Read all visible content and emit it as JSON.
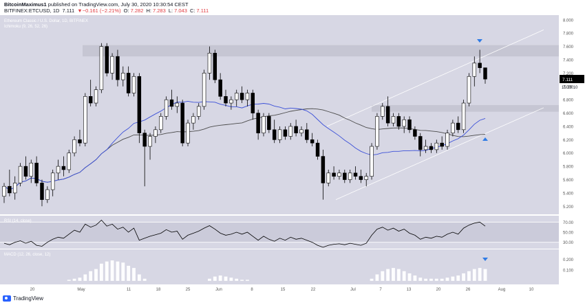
{
  "header": {
    "author": "BitcoinMaximus1",
    "published_text": "published on TradingView.com, July 30, 2020 10:30:54 CEST",
    "symbol": "BITFINEX:ETCUSD, 1D",
    "price": "7.111",
    "change": "▼−0.161 (−2.21%)",
    "open_label": "O:",
    "open_value": "7.282",
    "high_label": "H:",
    "high_value": "7.283",
    "low_label": "L:",
    "low_value": "7.043",
    "close_label": "C:",
    "close_value": "7.111"
  },
  "footer": {
    "brand": "TradingView"
  },
  "colors": {
    "background": "#d7d7e4",
    "candle_up": "#ffffff",
    "candle_down": "#000000",
    "ma_blue": "#3b50d8",
    "ma_dark": "#4a4a4a",
    "channel": "#ffffff",
    "zone": "#c3c3d0",
    "arrow": "#2f7be5",
    "price_tag": "#000000"
  },
  "chart_data": [
    {
      "type": "candlestick",
      "title": "Ethereum Classic / U.S. Dollar, 1D, BITFINEX",
      "indicator_label": "Ichimoku (9, 26, 52, 26)",
      "y_ticks": [
        "8.000",
        "7.800",
        "7.600",
        "7.400",
        "7.200",
        "7.000",
        "6.800",
        "6.600",
        "6.400",
        "6.200",
        "6.000",
        "5.800",
        "5.600",
        "5.400",
        "5.200"
      ],
      "ylim": [
        5.1,
        8.05
      ],
      "x_ticks": [
        "20",
        "May",
        "11",
        "18",
        "25",
        "Jun",
        "8",
        "15",
        "22",
        "Jul",
        "7",
        "13",
        "20",
        "26",
        "Aug",
        "10"
      ],
      "last_price": "7.111",
      "countdown": "15:29:10",
      "candles": [
        [
          5.35,
          5.55,
          5.25,
          5.5
        ],
        [
          5.5,
          5.75,
          5.35,
          5.4
        ],
        [
          5.4,
          5.65,
          5.3,
          5.55
        ],
        [
          5.55,
          5.85,
          5.5,
          5.8
        ],
        [
          5.8,
          5.95,
          5.6,
          5.65
        ],
        [
          5.65,
          5.9,
          5.55,
          5.85
        ],
        [
          5.85,
          5.95,
          5.5,
          5.55
        ],
        [
          5.55,
          5.6,
          5.2,
          5.3
        ],
        [
          5.3,
          5.5,
          5.25,
          5.45
        ],
        [
          5.45,
          5.75,
          5.35,
          5.7
        ],
        [
          5.7,
          5.9,
          5.6,
          5.8
        ],
        [
          5.8,
          5.95,
          5.65,
          5.75
        ],
        [
          5.75,
          6.05,
          5.7,
          6.0
        ],
        [
          6.0,
          6.25,
          5.95,
          6.2
        ],
        [
          6.2,
          6.35,
          6.1,
          6.15
        ],
        [
          6.15,
          6.9,
          6.1,
          6.85
        ],
        [
          6.85,
          7.1,
          6.7,
          6.75
        ],
        [
          6.75,
          7.0,
          6.7,
          6.95
        ],
        [
          6.95,
          7.65,
          6.9,
          7.6
        ],
        [
          7.6,
          7.65,
          7.15,
          7.2
        ],
        [
          7.2,
          7.5,
          7.1,
          7.45
        ],
        [
          7.45,
          7.55,
          7.0,
          7.1
        ],
        [
          7.1,
          7.3,
          7.0,
          7.2
        ],
        [
          7.2,
          7.3,
          6.85,
          6.9
        ],
        [
          6.9,
          7.2,
          6.85,
          7.15
        ],
        [
          7.15,
          7.2,
          6.15,
          6.3
        ],
        [
          6.3,
          6.35,
          5.5,
          6.1
        ],
        [
          6.1,
          6.3,
          5.9,
          6.25
        ],
        [
          6.25,
          6.4,
          6.15,
          6.35
        ],
        [
          6.35,
          6.6,
          6.3,
          6.55
        ],
        [
          6.55,
          6.85,
          6.5,
          6.8
        ],
        [
          6.8,
          6.95,
          6.65,
          6.7
        ],
        [
          6.7,
          6.85,
          6.6,
          6.75
        ],
        [
          6.75,
          6.8,
          6.1,
          6.15
        ],
        [
          6.15,
          6.5,
          6.1,
          6.45
        ],
        [
          6.45,
          6.6,
          6.35,
          6.55
        ],
        [
          6.55,
          6.75,
          6.5,
          6.7
        ],
        [
          6.7,
          7.25,
          6.65,
          7.2
        ],
        [
          7.2,
          7.6,
          7.1,
          7.5
        ],
        [
          7.5,
          7.55,
          7.05,
          7.1
        ],
        [
          7.1,
          7.2,
          6.8,
          6.85
        ],
        [
          6.85,
          6.95,
          6.7,
          6.75
        ],
        [
          6.75,
          6.85,
          6.65,
          6.8
        ],
        [
          6.8,
          6.95,
          6.7,
          6.9
        ],
        [
          6.9,
          7.0,
          6.75,
          6.8
        ],
        [
          6.8,
          6.95,
          6.7,
          6.9
        ],
        [
          6.9,
          6.95,
          6.5,
          6.6
        ],
        [
          6.6,
          6.65,
          6.2,
          6.3
        ],
        [
          6.3,
          6.6,
          6.25,
          6.55
        ],
        [
          6.55,
          6.6,
          6.3,
          6.35
        ],
        [
          6.35,
          6.5,
          6.15,
          6.2
        ],
        [
          6.2,
          6.4,
          6.15,
          6.35
        ],
        [
          6.35,
          6.4,
          6.2,
          6.25
        ],
        [
          6.25,
          6.45,
          6.2,
          6.4
        ],
        [
          6.4,
          6.5,
          6.25,
          6.3
        ],
        [
          6.3,
          6.4,
          6.25,
          6.35
        ],
        [
          6.35,
          6.45,
          6.15,
          6.2
        ],
        [
          6.2,
          6.3,
          6.1,
          6.15
        ],
        [
          6.15,
          6.2,
          5.9,
          5.95
        ],
        [
          5.95,
          6.05,
          5.3,
          5.55
        ],
        [
          5.55,
          5.75,
          5.5,
          5.7
        ],
        [
          5.7,
          5.8,
          5.6,
          5.65
        ],
        [
          5.65,
          5.75,
          5.6,
          5.7
        ],
        [
          5.7,
          5.75,
          5.55,
          5.6
        ],
        [
          5.6,
          5.75,
          5.55,
          5.7
        ],
        [
          5.7,
          5.8,
          5.6,
          5.65
        ],
        [
          5.65,
          5.75,
          5.55,
          5.6
        ],
        [
          5.6,
          5.7,
          5.5,
          5.65
        ],
        [
          5.65,
          6.15,
          5.6,
          6.1
        ],
        [
          6.1,
          6.6,
          6.05,
          6.55
        ],
        [
          6.55,
          6.75,
          6.5,
          6.7
        ],
        [
          6.7,
          6.85,
          6.4,
          6.45
        ],
        [
          6.45,
          6.6,
          6.4,
          6.55
        ],
        [
          6.55,
          6.6,
          6.35,
          6.4
        ],
        [
          6.4,
          6.55,
          6.3,
          6.5
        ],
        [
          6.5,
          6.55,
          6.3,
          6.35
        ],
        [
          6.35,
          6.4,
          6.2,
          6.25
        ],
        [
          6.25,
          6.3,
          5.95,
          6.05
        ],
        [
          6.05,
          6.2,
          6.0,
          6.1
        ],
        [
          6.1,
          6.15,
          6.0,
          6.05
        ],
        [
          6.05,
          6.2,
          6.0,
          6.15
        ],
        [
          6.15,
          6.25,
          6.05,
          6.1
        ],
        [
          6.1,
          6.35,
          6.05,
          6.3
        ],
        [
          6.3,
          6.5,
          6.25,
          6.45
        ],
        [
          6.45,
          6.55,
          6.3,
          6.35
        ],
        [
          6.35,
          6.8,
          6.3,
          6.75
        ],
        [
          6.75,
          7.2,
          6.7,
          7.15
        ],
        [
          7.15,
          7.45,
          7.0,
          7.35
        ],
        [
          7.35,
          7.55,
          7.2,
          7.28
        ],
        [
          7.28,
          7.28,
          7.04,
          7.11
        ]
      ]
    },
    {
      "type": "line",
      "title": "RSI (14, close)",
      "y_ticks": [
        "70.00",
        "50.00",
        "30.00"
      ],
      "ylim": [
        20,
        80
      ],
      "values": [
        28,
        25,
        30,
        33,
        28,
        32,
        24,
        22,
        30,
        36,
        40,
        38,
        46,
        54,
        50,
        66,
        60,
        64,
        74,
        62,
        66,
        56,
        60,
        50,
        58,
        34,
        38,
        42,
        45,
        48,
        55,
        50,
        52,
        36,
        44,
        48,
        52,
        58,
        63,
        56,
        48,
        44,
        46,
        50,
        46,
        50,
        42,
        34,
        42,
        36,
        32,
        38,
        34,
        40,
        36,
        38,
        34,
        30,
        24,
        20,
        24,
        26,
        27,
        25,
        28,
        26,
        24,
        28,
        44,
        56,
        60,
        54,
        58,
        52,
        56,
        48,
        44,
        36,
        40,
        38,
        42,
        40,
        46,
        50,
        46,
        58,
        64,
        68,
        70,
        62
      ]
    },
    {
      "type": "bar",
      "title": "MACD (12, 26, close, 12)",
      "y_ticks": [
        "0.200",
        "0.100"
      ],
      "ylim": [
        -0.02,
        0.28
      ],
      "values": [
        0.0,
        0.0,
        0.0,
        0.0,
        0.0,
        0.0,
        0.0,
        0.0,
        0.0,
        0.0,
        0.0,
        0.0,
        0.01,
        0.02,
        0.03,
        0.06,
        0.09,
        0.11,
        0.16,
        0.18,
        0.19,
        0.18,
        0.17,
        0.14,
        0.12,
        0.06,
        0.02,
        0.0,
        0.0,
        0.0,
        0.0,
        0.0,
        0.0,
        0.0,
        0.0,
        0.0,
        0.0,
        0.0,
        0.02,
        0.04,
        0.05,
        0.04,
        0.03,
        0.02,
        0.01,
        0.01,
        0.0,
        0.0,
        0.0,
        0.0,
        0.0,
        0.0,
        0.0,
        0.0,
        0.0,
        0.0,
        0.0,
        0.0,
        0.0,
        0.0,
        0.0,
        0.0,
        0.0,
        0.0,
        0.0,
        0.0,
        0.0,
        0.0,
        0.02,
        0.06,
        0.09,
        0.11,
        0.12,
        0.11,
        0.09,
        0.07,
        0.05,
        0.03,
        0.02,
        0.02,
        0.02,
        0.02,
        0.03,
        0.04,
        0.05,
        0.07,
        0.09,
        0.11,
        0.12,
        0.11
      ]
    }
  ]
}
